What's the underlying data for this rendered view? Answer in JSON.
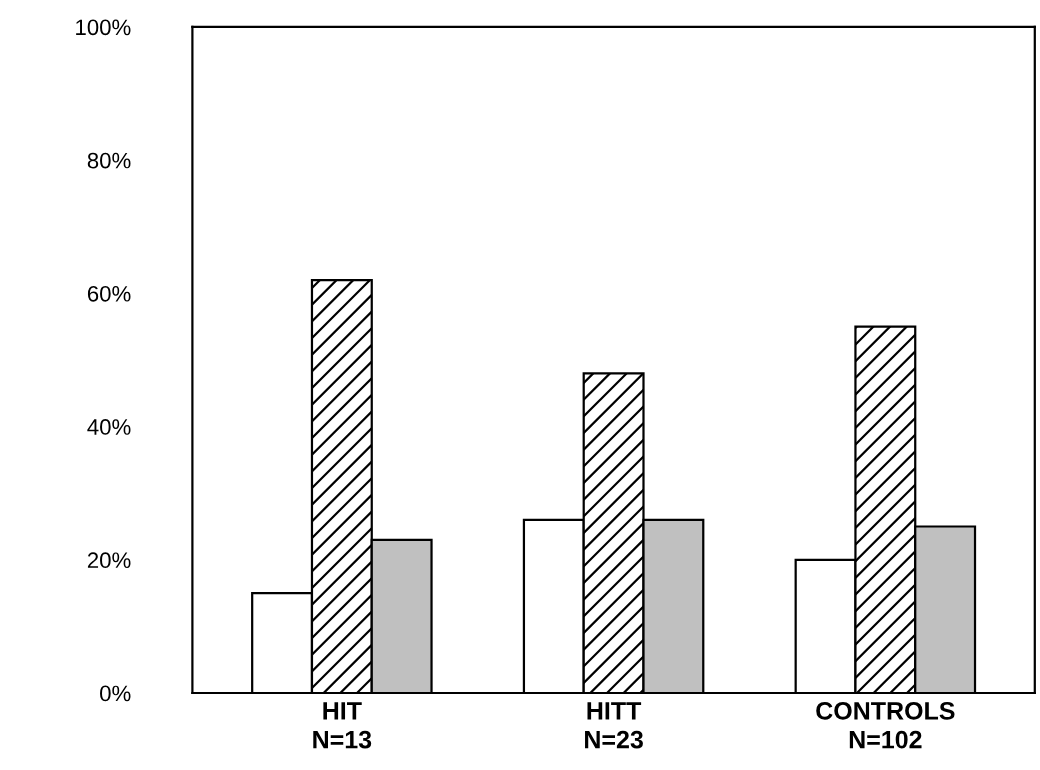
{
  "chart_data": {
    "type": "bar",
    "categories": [
      "HIT\nN=13",
      "HITT\nN=23",
      "CONTROLS\nN=102"
    ],
    "series": [
      {
        "color": "#ffffff",
        "values": [
          15,
          26,
          20
        ]
      },
      {
        "color": "#000000",
        "values": [
          62,
          48,
          55
        ]
      },
      {
        "color": "#c0c0c0",
        "values": [
          23,
          26,
          25
        ]
      }
    ],
    "ylim": [
      0,
      100
    ],
    "yticks": [
      {
        "value": 0,
        "label": "0%"
      },
      {
        "value": 20,
        "label": "20%"
      },
      {
        "value": 40,
        "label": "40%"
      },
      {
        "value": 60,
        "label": "60%"
      },
      {
        "value": 80,
        "label": "80%"
      },
      {
        "value": 100,
        "label": "100%"
      }
    ]
  }
}
